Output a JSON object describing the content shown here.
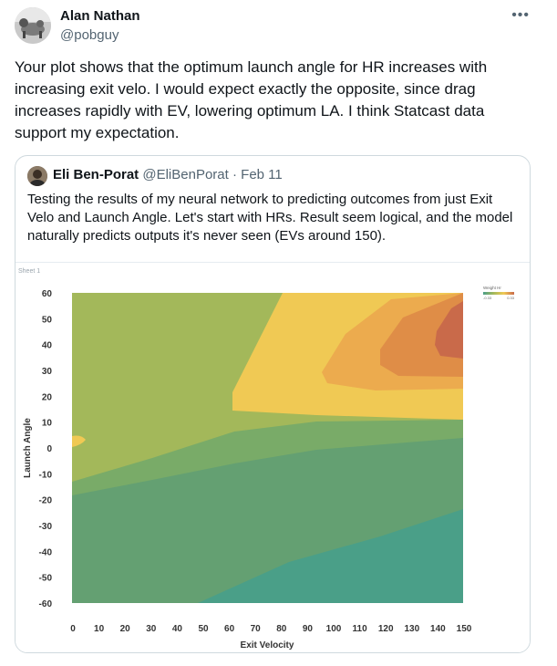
{
  "tweet": {
    "author_name": "Alan Nathan",
    "author_handle": "@pobguy",
    "text": "Your plot shows that the optimum launch angle for HR increases with increasing exit velo.   I would expect exactly the opposite, since drag increases rapidly with EV, lowering optimum LA.   I think Statcast data support my expectation."
  },
  "quoted": {
    "author_name": "Eli Ben-Porat",
    "author_handle": "@EliBenPorat",
    "separator": "·",
    "date": "Feb 11",
    "text": "Testing the results of my neural network to predicting outcomes from just Exit Velo and Launch Angle. Let's start with HRs. Result seem logical, and the model naturally predicts outputs it's never seen (EVs around 150)."
  },
  "icons": {
    "more": "more-horizontal-icon"
  },
  "chart_data": {
    "type": "heatmap",
    "sheet_label": "Sheet 1",
    "xlabel": "Exit Velocity",
    "ylabel": "Launch Angle",
    "x_ticks": [
      0,
      10,
      20,
      30,
      40,
      50,
      60,
      70,
      80,
      90,
      100,
      110,
      120,
      130,
      140,
      150
    ],
    "y_ticks": [
      60,
      50,
      40,
      30,
      20,
      10,
      0,
      -10,
      -20,
      -30,
      -40,
      -50,
      -60
    ],
    "xlim": [
      0,
      150
    ],
    "ylim": [
      -60,
      60
    ],
    "legend": {
      "title": "Weight Hr",
      "min_label": "-0.33",
      "max_label": "0.33",
      "placement": "top-right"
    },
    "colors": {
      "band_teal": "#4a9f88",
      "band_darkgreen": "#64a072",
      "band_green": "#79ab68",
      "band_olive": "#a3b85a",
      "band_yellow": "#f0c954",
      "band_orange_light": "#ecab4e",
      "band_orange": "#df8d47",
      "band_red": "#c96a4a"
    }
  }
}
